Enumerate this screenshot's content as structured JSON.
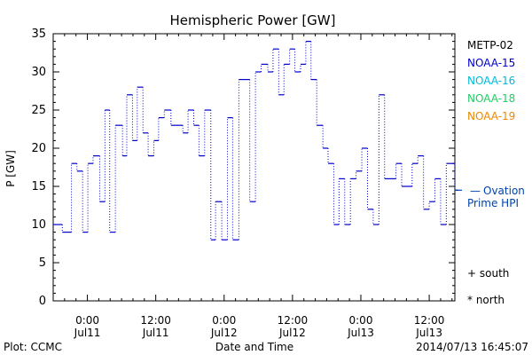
{
  "chart_data": {
    "type": "line",
    "title": "Hemispheric Power [GW]",
    "ylabel": "P [GW]",
    "xlabel": "Date and Time",
    "ylim": [
      0,
      35
    ],
    "xlim": [
      "2014-07-10 18:00",
      "2014-07-13 16:30"
    ],
    "yticks": [
      0,
      5,
      10,
      15,
      20,
      25,
      30,
      35
    ],
    "xticks": [
      {
        "x": "2014-07-11 00:00",
        "time": "0:00",
        "date": "Jul11"
      },
      {
        "x": "2014-07-11 12:00",
        "time": "12:00",
        "date": "Jul11"
      },
      {
        "x": "2014-07-12 00:00",
        "time": "0:00",
        "date": "Jul12"
      },
      {
        "x": "2014-07-12 12:00",
        "time": "12:00",
        "date": "Jul12"
      },
      {
        "x": "2014-07-13 00:00",
        "time": "0:00",
        "date": "Jul13"
      },
      {
        "x": "2014-07-13 12:00",
        "time": "12:00",
        "date": "Jul13"
      }
    ],
    "grid": false,
    "legend_position": "right",
    "series": [
      {
        "name": "METP-02",
        "color": "#000000",
        "values": []
      },
      {
        "name": "NOAA-15",
        "color": "#0000cc",
        "style": "dotted-step",
        "points": [
          [
            "2014-07-10 18:00",
            10
          ],
          [
            "2014-07-10 19:36",
            9
          ],
          [
            "2014-07-10 21:12",
            18
          ],
          [
            "2014-07-10 22:10",
            17
          ],
          [
            "2014-07-10 23:10",
            9
          ],
          [
            "2014-07-11 00:05",
            18
          ],
          [
            "2014-07-11 01:00",
            19
          ],
          [
            "2014-07-11 02:10",
            13
          ],
          [
            "2014-07-11 03:05",
            25
          ],
          [
            "2014-07-11 03:55",
            9
          ],
          [
            "2014-07-11 04:55",
            23
          ],
          [
            "2014-07-11 06:10",
            19
          ],
          [
            "2014-07-11 06:55",
            27
          ],
          [
            "2014-07-11 07:55",
            21
          ],
          [
            "2014-07-11 08:45",
            28
          ],
          [
            "2014-07-11 09:45",
            22
          ],
          [
            "2014-07-11 10:40",
            19
          ],
          [
            "2014-07-11 11:40",
            21
          ],
          [
            "2014-07-11 12:30",
            24
          ],
          [
            "2014-07-11 13:30",
            25
          ],
          [
            "2014-07-11 14:40",
            23
          ],
          [
            "2014-07-11 16:45",
            22
          ],
          [
            "2014-07-11 17:40",
            25
          ],
          [
            "2014-07-11 18:40",
            23
          ],
          [
            "2014-07-11 19:35",
            19
          ],
          [
            "2014-07-11 20:35",
            25
          ],
          [
            "2014-07-11 21:40",
            8
          ],
          [
            "2014-07-11 22:30",
            13
          ],
          [
            "2014-07-11 23:35",
            8
          ],
          [
            "2014-07-12 00:35",
            24
          ],
          [
            "2014-07-12 01:30",
            8
          ],
          [
            "2014-07-12 02:35",
            29
          ],
          [
            "2014-07-12 04:30",
            13
          ],
          [
            "2014-07-12 05:30",
            30
          ],
          [
            "2014-07-12 06:30",
            31
          ],
          [
            "2014-07-12 07:40",
            30
          ],
          [
            "2014-07-12 08:35",
            33
          ],
          [
            "2014-07-12 09:35",
            27
          ],
          [
            "2014-07-12 10:30",
            31
          ],
          [
            "2014-07-12 11:30",
            33
          ],
          [
            "2014-07-12 12:25",
            30
          ],
          [
            "2014-07-12 13:25",
            31
          ],
          [
            "2014-07-12 14:20",
            34
          ],
          [
            "2014-07-12 15:15",
            29
          ],
          [
            "2014-07-12 16:15",
            23
          ],
          [
            "2014-07-12 17:20",
            20
          ],
          [
            "2014-07-12 18:15",
            18
          ],
          [
            "2014-07-12 19:15",
            10
          ],
          [
            "2014-07-12 20:10",
            16
          ],
          [
            "2014-07-12 21:10",
            10
          ],
          [
            "2014-07-12 22:10",
            16
          ],
          [
            "2014-07-12 23:10",
            17
          ],
          [
            "2014-07-13 00:10",
            20
          ],
          [
            "2014-07-13 01:10",
            12
          ],
          [
            "2014-07-13 02:10",
            10
          ],
          [
            "2014-07-13 03:10",
            27
          ],
          [
            "2014-07-13 04:10",
            16
          ],
          [
            "2014-07-13 06:10",
            18
          ],
          [
            "2014-07-13 07:10",
            15
          ],
          [
            "2014-07-13 09:00",
            18
          ],
          [
            "2014-07-13 10:00",
            19
          ],
          [
            "2014-07-13 11:00",
            12
          ],
          [
            "2014-07-13 12:00",
            13
          ],
          [
            "2014-07-13 13:00",
            16
          ],
          [
            "2014-07-13 14:00",
            10
          ],
          [
            "2014-07-13 15:00",
            18
          ],
          [
            "2014-07-13 16:30",
            14.5
          ]
        ]
      },
      {
        "name": "NOAA-16",
        "color": "#00bbdd",
        "values": []
      },
      {
        "name": "NOAA-18",
        "color": "#22cc66",
        "values": []
      },
      {
        "name": "NOAA-19",
        "color": "#ee8800",
        "values": []
      }
    ],
    "ovation": {
      "label_line1": "Ovation",
      "label_line2": "Prime HPI",
      "dash": "—",
      "value": 14.5,
      "color": "#0044aa"
    },
    "markers": {
      "south": "+ south",
      "north": "* north"
    }
  },
  "footer": {
    "plot_credit": "Plot: CCMC",
    "timestamp": "2014/07/13 16:45:07"
  }
}
